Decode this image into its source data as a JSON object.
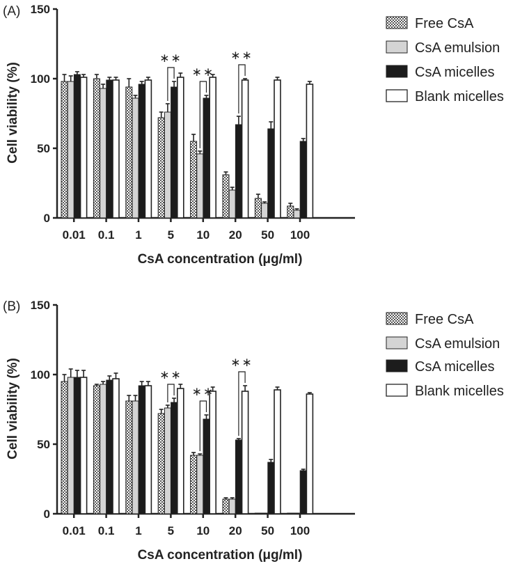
{
  "chart_data": [
    {
      "panel_label": "(A)",
      "type": "bar",
      "xlabel": "CsA concentration (μg/ml)",
      "ylabel": "Cell viability (%)",
      "ylim": [
        0,
        150
      ],
      "yticks": [
        0,
        50,
        100,
        150
      ],
      "categories": [
        "0.01",
        "0.1",
        "1",
        "5",
        "10",
        "20",
        "50",
        "100"
      ],
      "legend_position": "right",
      "series": [
        {
          "name": "Free CsA",
          "pattern": "checker",
          "values": [
            98,
            100,
            94,
            72,
            55,
            31,
            14,
            8.5
          ],
          "errors": [
            5,
            3,
            6,
            4,
            5,
            2,
            3,
            2
          ]
        },
        {
          "name": "CsA emulsion",
          "pattern": "lightgray",
          "values": [
            98,
            93,
            86,
            76,
            46,
            20,
            10.5,
            5.5
          ],
          "errors": [
            4,
            3,
            2,
            6,
            2,
            2,
            1,
            1
          ]
        },
        {
          "name": "CsA micelles",
          "pattern": "black",
          "values": [
            103,
            99,
            96,
            94,
            86,
            67,
            64,
            55
          ],
          "errors": [
            2,
            2,
            2,
            4,
            2,
            6,
            5,
            2
          ]
        },
        {
          "name": "Blank micelles",
          "pattern": "white",
          "values": [
            101,
            99,
            99,
            101,
            101,
            99,
            99,
            96
          ],
          "errors": [
            2,
            2,
            2,
            3,
            2,
            1,
            2,
            2
          ]
        }
      ],
      "significance": [
        {
          "label": "∗∗",
          "category": "5",
          "from_series": 1,
          "to_series": 2
        },
        {
          "label": "∗∗",
          "category": "10",
          "from_series": 1,
          "to_series": 2
        },
        {
          "label": "∗∗",
          "category": "20",
          "from_series": 2,
          "to_series": 3
        }
      ]
    },
    {
      "panel_label": "(B)",
      "type": "bar",
      "xlabel": "CsA concentration (μg/ml)",
      "ylabel": "Cell viability (%)",
      "ylim": [
        0,
        150
      ],
      "yticks": [
        0,
        50,
        100,
        150
      ],
      "categories": [
        "0.01",
        "0.1",
        "1",
        "5",
        "10",
        "20",
        "50",
        "100"
      ],
      "legend_position": "right",
      "series": [
        {
          "name": "Free CsA",
          "pattern": "checker",
          "values": [
            95,
            92,
            81,
            72,
            42,
            10.5,
            0.5,
            0.5
          ],
          "errors": [
            5,
            1,
            4,
            3,
            2,
            1,
            0.3,
            0.3
          ]
        },
        {
          "name": "CsA emulsion",
          "pattern": "lightgray",
          "values": [
            98,
            93,
            81,
            76,
            42,
            10.5,
            0.5,
            0.5
          ],
          "errors": [
            6,
            2,
            4,
            2,
            1,
            1,
            0.3,
            0.3
          ]
        },
        {
          "name": "CsA micelles",
          "pattern": "black",
          "values": [
            98,
            96,
            92,
            80,
            68,
            53,
            37,
            31
          ],
          "errors": [
            5,
            3,
            3,
            3,
            3,
            1,
            2,
            1
          ]
        },
        {
          "name": "Blank micelles",
          "pattern": "white",
          "values": [
            98,
            97,
            92,
            90,
            88,
            88,
            89,
            86
          ],
          "errors": [
            5,
            4,
            3,
            3,
            3,
            4,
            2,
            1
          ]
        }
      ],
      "significance": [
        {
          "label": "∗∗",
          "category": "5",
          "from_series": 1,
          "to_series": 2
        },
        {
          "label": "∗∗",
          "category": "10",
          "from_series": 1,
          "to_series": 2
        },
        {
          "label": "∗∗",
          "category": "20",
          "from_series": 2,
          "to_series": 3
        }
      ]
    }
  ],
  "colors": {
    "axis": "#222222",
    "checker_dark": "#555555",
    "checker_light": "#ffffff",
    "light_bar": "#d4d4d4",
    "dark_bar": "#1c1c1c",
    "white_bar": "#ffffff"
  }
}
